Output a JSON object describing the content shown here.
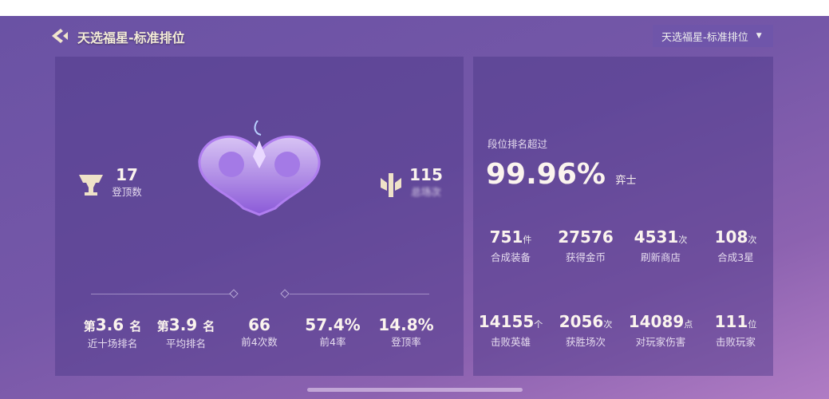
{
  "header": {
    "title": "天选福星-标准排位",
    "mode_select": "天选福星-标准排位"
  },
  "left": {
    "top_count": {
      "value": "17",
      "label": "登顶数"
    },
    "total": {
      "value": "115",
      "label": "总场次"
    },
    "stats": [
      {
        "prefix": "第",
        "value": "3.6",
        "suffix": "名",
        "label": "近十场排名"
      },
      {
        "prefix": "第",
        "value": "3.9",
        "suffix": "名",
        "label": "平均排名"
      },
      {
        "prefix": "",
        "value": "66",
        "suffix": "",
        "label": "前4次数"
      },
      {
        "prefix": "",
        "value": "57.4%",
        "suffix": "",
        "label": "前4率"
      },
      {
        "prefix": "",
        "value": "14.8%",
        "suffix": "",
        "label": "登顶率"
      }
    ]
  },
  "right": {
    "rank_label": "段位排名超过",
    "rank_value": "99.96%",
    "rank_unit": "弈士",
    "stats": [
      {
        "value": "751",
        "unit": "件",
        "label": "合成装备"
      },
      {
        "value": "27576",
        "unit": "",
        "label": "获得金币"
      },
      {
        "value": "4531",
        "unit": "次",
        "label": "刷新商店"
      },
      {
        "value": "108",
        "unit": "次",
        "label": "合成3星"
      },
      {
        "value": "14155",
        "unit": "个",
        "label": "击败英雄"
      },
      {
        "value": "2056",
        "unit": "次",
        "label": "获胜场次"
      },
      {
        "value": "14089",
        "unit": "点",
        "label": "对玩家伤害"
      },
      {
        "value": "111",
        "unit": "位",
        "label": "击败玩家"
      }
    ]
  }
}
